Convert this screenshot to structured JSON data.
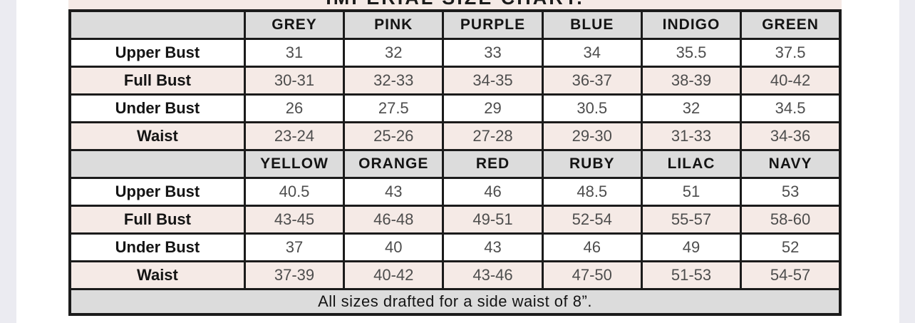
{
  "chart_data": {
    "type": "table",
    "title": "IMPERIAL SIZE CHART.",
    "sections": [
      {
        "columns": [
          "GREY",
          "PINK",
          "PURPLE",
          "BLUE",
          "INDIGO",
          "GREEN"
        ],
        "rows": [
          {
            "label": "Upper Bust",
            "values": [
              "31",
              "32",
              "33",
              "34",
              "35.5",
              "37.5"
            ]
          },
          {
            "label": "Full Bust",
            "values": [
              "30-31",
              "32-33",
              "34-35",
              "36-37",
              "38-39",
              "40-42"
            ]
          },
          {
            "label": "Under Bust",
            "values": [
              "26",
              "27.5",
              "29",
              "30.5",
              "32",
              "34.5"
            ]
          },
          {
            "label": "Waist",
            "values": [
              "23-24",
              "25-26",
              "27-28",
              "29-30",
              "31-33",
              "34-36"
            ]
          }
        ]
      },
      {
        "columns": [
          "YELLOW",
          "ORANGE",
          "RED",
          "RUBY",
          "LILAC",
          "NAVY"
        ],
        "rows": [
          {
            "label": "Upper Bust",
            "values": [
              "40.5",
              "43",
              "46",
              "48.5",
              "51",
              "53"
            ]
          },
          {
            "label": "Full Bust",
            "values": [
              "43-45",
              "46-48",
              "49-51",
              "52-54",
              "55-57",
              "58-60"
            ]
          },
          {
            "label": "Under Bust",
            "values": [
              "37",
              "40",
              "43",
              "46",
              "49",
              "52"
            ]
          },
          {
            "label": "Waist",
            "values": [
              "37-39",
              "40-42",
              "43-46",
              "47-50",
              "51-53",
              "54-57"
            ]
          }
        ]
      }
    ],
    "footnote": "All sizes drafted for a side waist of 8”."
  },
  "colors": {
    "header_bg": "#dcdcdc",
    "pink_row_bg": "#f5eae6",
    "title_bg": "#f5eae6",
    "border": "#1b1b1b",
    "value_text": "#4d4d4d",
    "label_text": "#141414",
    "side_gutter": "#ebebf1"
  }
}
